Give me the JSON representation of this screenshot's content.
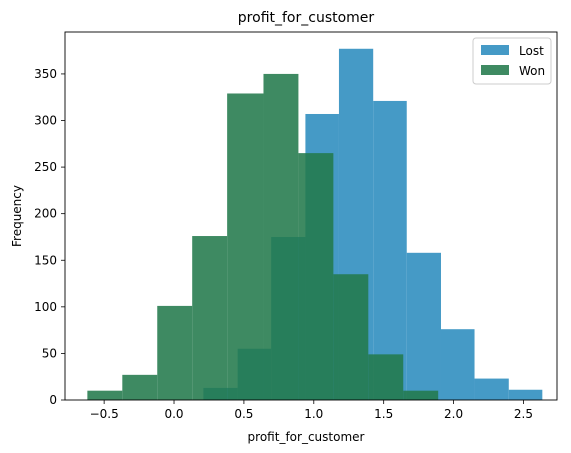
{
  "chart_data": {
    "type": "histogram",
    "title": "profit_for_customer",
    "xlabel": "profit_for_customer",
    "ylabel": "Frequency",
    "xlim": [
      -0.78,
      2.74
    ],
    "ylim": [
      0,
      395
    ],
    "xticks": [
      -0.5,
      0.0,
      0.5,
      1.0,
      1.5,
      2.0,
      2.5
    ],
    "xtick_labels": [
      "−0.5",
      "0.0",
      "0.5",
      "1.0",
      "1.5",
      "2.0",
      "2.5"
    ],
    "yticks": [
      0,
      50,
      100,
      150,
      200,
      250,
      300,
      350
    ],
    "ytick_labels": [
      "0",
      "50",
      "100",
      "150",
      "200",
      "250",
      "300",
      "350"
    ],
    "legend_position": "top-right",
    "grid": false,
    "series": [
      {
        "name": "Lost",
        "color": "#2b8cbe",
        "bins": [
          {
            "x0": 0.21,
            "x1": 0.455,
            "count": 13
          },
          {
            "x0": 0.455,
            "x1": 0.695,
            "count": 55
          },
          {
            "x0": 0.695,
            "x1": 0.94,
            "count": 175
          },
          {
            "x0": 0.94,
            "x1": 1.18,
            "count": 307
          },
          {
            "x0": 1.18,
            "x1": 1.425,
            "count": 377
          },
          {
            "x0": 1.425,
            "x1": 1.665,
            "count": 321
          },
          {
            "x0": 1.665,
            "x1": 1.91,
            "count": 158
          },
          {
            "x0": 1.91,
            "x1": 2.15,
            "count": 76
          },
          {
            "x0": 2.15,
            "x1": 2.395,
            "count": 23
          },
          {
            "x0": 2.395,
            "x1": 2.635,
            "count": 11
          }
        ]
      },
      {
        "name": "Won",
        "color": "#237a4c",
        "bins": [
          {
            "x0": -0.62,
            "x1": -0.37,
            "count": 10
          },
          {
            "x0": -0.37,
            "x1": -0.12,
            "count": 27
          },
          {
            "x0": -0.12,
            "x1": 0.13,
            "count": 101
          },
          {
            "x0": 0.13,
            "x1": 0.38,
            "count": 176
          },
          {
            "x0": 0.38,
            "x1": 0.64,
            "count": 329
          },
          {
            "x0": 0.64,
            "x1": 0.89,
            "count": 350
          },
          {
            "x0": 0.89,
            "x1": 1.14,
            "count": 265
          },
          {
            "x0": 1.14,
            "x1": 1.39,
            "count": 135
          },
          {
            "x0": 1.39,
            "x1": 1.64,
            "count": 49
          },
          {
            "x0": 1.64,
            "x1": 1.89,
            "count": 10
          }
        ]
      }
    ]
  }
}
